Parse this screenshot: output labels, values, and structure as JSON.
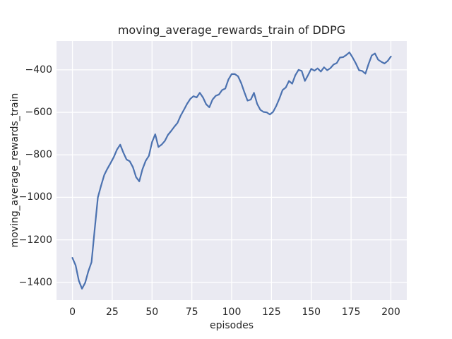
{
  "figure": {
    "background": "#ffffff"
  },
  "chart_data": {
    "type": "line",
    "title": "moving_average_rewards_train of DDPG",
    "xlabel": "episodes",
    "ylabel": "moving_average_rewards_train",
    "xlim": [
      -10,
      210
    ],
    "ylim": [
      -1484,
      -264
    ],
    "xticks": [
      0,
      25,
      50,
      75,
      100,
      125,
      150,
      175,
      200
    ],
    "yticks": [
      -400,
      -600,
      -800,
      -1000,
      -1200,
      -1400
    ],
    "grid": true,
    "legend_position": "none",
    "style": {
      "axes_bg": "#eaeaf2",
      "grid_color": "#ffffff",
      "line_color": "#4c72b0",
      "text_color": "#262626",
      "line_width": 2.2,
      "grid_width": 1.3
    },
    "series": [
      {
        "name": "moving_average_rewards_train",
        "x": [
          0,
          2,
          4,
          6,
          8,
          10,
          12,
          14,
          16,
          18,
          20,
          22,
          24,
          26,
          28,
          30,
          32,
          34,
          36,
          38,
          40,
          42,
          44,
          46,
          48,
          50,
          52,
          54,
          56,
          58,
          60,
          62,
          64,
          66,
          68,
          70,
          72,
          74,
          76,
          78,
          80,
          82,
          84,
          86,
          88,
          90,
          92,
          94,
          96,
          98,
          100,
          102,
          104,
          106,
          108,
          110,
          112,
          114,
          116,
          118,
          120,
          122,
          124,
          126,
          128,
          130,
          132,
          134,
          136,
          138,
          140,
          142,
          144,
          146,
          148,
          150,
          152,
          154,
          156,
          158,
          160,
          162,
          164,
          166,
          168,
          170,
          172,
          174,
          176,
          178,
          180,
          182,
          184,
          186,
          188,
          190,
          192,
          194,
          196,
          198,
          200
        ],
        "values": [
          -1285,
          -1320,
          -1392,
          -1430,
          -1402,
          -1348,
          -1305,
          -1150,
          -1000,
          -945,
          -895,
          -865,
          -838,
          -810,
          -775,
          -752,
          -790,
          -822,
          -830,
          -858,
          -905,
          -925,
          -868,
          -828,
          -805,
          -740,
          -703,
          -763,
          -752,
          -735,
          -706,
          -688,
          -668,
          -650,
          -615,
          -588,
          -560,
          -537,
          -524,
          -530,
          -508,
          -530,
          -562,
          -576,
          -540,
          -522,
          -516,
          -495,
          -488,
          -445,
          -420,
          -420,
          -430,
          -462,
          -505,
          -545,
          -540,
          -508,
          -560,
          -588,
          -598,
          -600,
          -610,
          -598,
          -570,
          -535,
          -495,
          -483,
          -452,
          -465,
          -425,
          -400,
          -405,
          -452,
          -425,
          -395,
          -404,
          -393,
          -408,
          -388,
          -402,
          -392,
          -375,
          -368,
          -342,
          -340,
          -330,
          -318,
          -342,
          -370,
          -402,
          -405,
          -418,
          -372,
          -332,
          -323,
          -352,
          -362,
          -370,
          -358,
          -337
        ]
      }
    ]
  }
}
